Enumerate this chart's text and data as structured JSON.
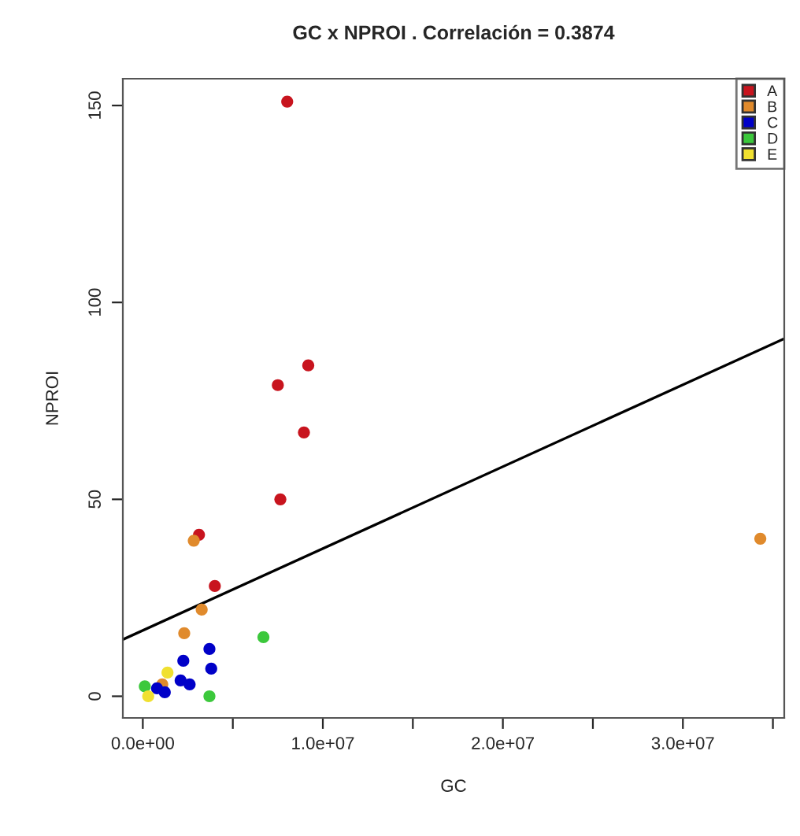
{
  "chart_data": {
    "type": "scatter",
    "title": "GC x NPROI . Correlación = 0.3874",
    "xlabel": "GC",
    "ylabel": "NPROI",
    "series": [
      {
        "name": "A",
        "color": "#c8141e",
        "x": [
          8020000,
          9190000,
          7500000,
          8950000,
          7640000,
          3120000,
          4000000
        ],
        "values": [
          151,
          84,
          79,
          67,
          50,
          41,
          28
        ]
      },
      {
        "name": "B",
        "color": "#e08a2c",
        "x": [
          2830000,
          34300000,
          3270000,
          2300000,
          1080000
        ],
        "values": [
          39.5,
          40,
          22,
          16,
          3
        ]
      },
      {
        "name": "C",
        "color": "#0000c8",
        "x": [
          3700000,
          2250000,
          3800000,
          2100000,
          2600000,
          790000,
          1220000
        ],
        "values": [
          12,
          9,
          7,
          4,
          3,
          2,
          1
        ]
      },
      {
        "name": "D",
        "color": "#3cc83c",
        "x": [
          6700000,
          3700000,
          110000
        ],
        "values": [
          15,
          0,
          2.5
        ]
      },
      {
        "name": "E",
        "color": "#f0e030",
        "x": [
          1370000,
          300000
        ],
        "values": [
          6,
          0
        ]
      },
      {
        "type": "line",
        "marker": "none",
        "color": "#000000",
        "x": [
          -1110000,
          35630000
        ],
        "values": [
          14.4,
          90.8
        ]
      }
    ],
    "xlim": [
      -1110000,
      35630000
    ],
    "ylim": [
      -5.5,
      156.8
    ],
    "xticks": [
      {
        "value": 0,
        "label": "0.0e+00"
      },
      {
        "value": 5000000,
        "label": null
      },
      {
        "value": 10000000,
        "label": "1.0e+07"
      },
      {
        "value": 15000000,
        "label": null
      },
      {
        "value": 20000000,
        "label": "2.0e+07"
      },
      {
        "value": 25000000,
        "label": null
      },
      {
        "value": 30000000,
        "label": "3.0e+07"
      },
      {
        "value": 35000000,
        "label": null
      }
    ],
    "yticks": [
      0,
      50,
      100,
      150
    ],
    "grid": false,
    "legend": "top right",
    "marker": "circle"
  }
}
